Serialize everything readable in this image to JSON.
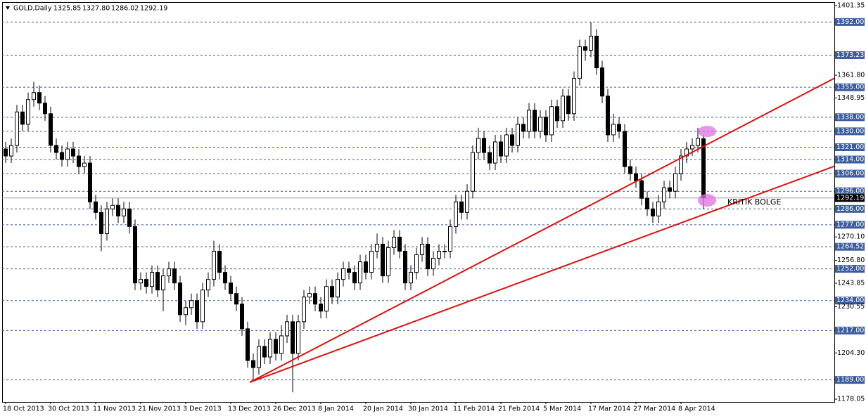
{
  "chart_data": {
    "type": "candlestick",
    "symbol": "GOLD,Daily",
    "ohlc_header": [
      "1325.85",
      "1327.80",
      "1286.02",
      "1292.19"
    ],
    "categories": [
      "18 Oct 2013",
      null,
      null,
      null,
      null,
      null,
      null,
      null,
      "30 Oct 2013",
      null,
      null,
      null,
      null,
      null,
      null,
      null,
      "11 Nov 2013",
      null,
      null,
      null,
      null,
      null,
      null,
      null,
      "21 Nov 2013",
      null,
      null,
      null,
      null,
      null,
      null,
      null,
      "3 Dec 2013",
      null,
      null,
      null,
      null,
      null,
      null,
      null,
      "13 Dec 2013",
      null,
      null,
      null,
      null,
      null,
      null,
      null,
      "26 Dec 2013",
      null,
      null,
      null,
      null,
      null,
      null,
      null,
      "8 Jan 2014",
      null,
      null,
      null,
      null,
      null,
      null,
      null,
      "20 Jan 2014",
      null,
      null,
      null,
      null,
      null,
      null,
      null,
      "30 Jan 2014",
      null,
      null,
      null,
      null,
      null,
      null,
      null,
      "11 Feb 2014",
      null,
      null,
      null,
      null,
      null,
      null,
      null,
      "21 Feb 2014",
      null,
      null,
      null,
      null,
      null,
      null,
      null,
      "5 Mar 2014",
      null,
      null,
      null,
      null,
      null,
      null,
      null,
      "17 Mar 2014",
      null,
      null,
      null,
      null,
      null,
      null,
      null,
      "27 Mar 2014",
      null,
      null,
      null,
      null,
      null,
      null,
      null,
      "8 Apr 2014",
      null,
      null,
      null,
      null
    ],
    "open": [
      1320,
      1316,
      1322,
      1341,
      1334,
      1348,
      1352,
      1346,
      1340,
      1322,
      1318,
      1314,
      1320,
      1316,
      1310,
      1312,
      1290,
      1284,
      1272,
      1286,
      1288,
      1282,
      1286,
      1276,
      1244,
      1246,
      1242,
      1250,
      1240,
      1248,
      1252,
      1244,
      1226,
      1230,
      1234,
      1222,
      1240,
      1246,
      1262,
      1250,
      1244,
      1238,
      1232,
      1218,
      1200,
      1196,
      1208,
      1202,
      1212,
      1204,
      1214,
      1222,
      1204,
      1222,
      1236,
      1238,
      1232,
      1228,
      1242,
      1236,
      1246,
      1252,
      1250,
      1244,
      1256,
      1250,
      1262,
      1266,
      1248,
      1264,
      1270,
      1262,
      1244,
      1250,
      1260,
      1266,
      1252,
      1258,
      1262,
      1262,
      1276,
      1290,
      1284,
      1296,
      1318,
      1326,
      1318,
      1312,
      1324,
      1316,
      1328,
      1322,
      1334,
      1330,
      1342,
      1330,
      1338,
      1328,
      1344,
      1336,
      1350,
      1340,
      1360,
      1378,
      1376,
      1384,
      1366,
      1350,
      1328,
      1334,
      1330,
      1310,
      1306,
      1302,
      1292,
      1286,
      1282,
      1290,
      1298,
      1296,
      1306,
      1316,
      1320,
      1322,
      1325.85
    ],
    "high": [
      1324,
      1326,
      1345,
      1345,
      1352,
      1358,
      1356,
      1350,
      1344,
      1326,
      1322,
      1324,
      1324,
      1320,
      1316,
      1316,
      1294,
      1288,
      1290,
      1292,
      1292,
      1290,
      1290,
      1280,
      1250,
      1250,
      1254,
      1254,
      1252,
      1256,
      1256,
      1248,
      1234,
      1238,
      1238,
      1244,
      1250,
      1268,
      1266,
      1254,
      1248,
      1242,
      1236,
      1222,
      1204,
      1212,
      1212,
      1216,
      1216,
      1220,
      1226,
      1226,
      1226,
      1240,
      1242,
      1242,
      1236,
      1246,
      1246,
      1250,
      1256,
      1256,
      1254,
      1260,
      1260,
      1266,
      1272,
      1270,
      1268,
      1274,
      1274,
      1266,
      1254,
      1264,
      1270,
      1270,
      1262,
      1266,
      1266,
      1280,
      1294,
      1294,
      1300,
      1322,
      1332,
      1330,
      1322,
      1328,
      1328,
      1332,
      1332,
      1338,
      1338,
      1346,
      1346,
      1342,
      1342,
      1348,
      1348,
      1354,
      1354,
      1364,
      1382,
      1382,
      1392,
      1388,
      1370,
      1354,
      1340,
      1338,
      1334,
      1314,
      1310,
      1306,
      1296,
      1290,
      1294,
      1302,
      1302,
      1310,
      1320,
      1324,
      1326,
      1332,
      1327.8
    ],
    "low": [
      1312,
      1312,
      1318,
      1330,
      1330,
      1344,
      1342,
      1336,
      1318,
      1314,
      1310,
      1310,
      1312,
      1306,
      1306,
      1286,
      1280,
      1262,
      1268,
      1282,
      1278,
      1278,
      1272,
      1240,
      1240,
      1238,
      1238,
      1236,
      1228,
      1244,
      1240,
      1222,
      1220,
      1226,
      1218,
      1218,
      1236,
      1242,
      1246,
      1240,
      1234,
      1228,
      1214,
      1196,
      1189,
      1192,
      1198,
      1198,
      1200,
      1200,
      1210,
      1182,
      1200,
      1218,
      1232,
      1228,
      1224,
      1224,
      1232,
      1232,
      1242,
      1246,
      1240,
      1240,
      1246,
      1246,
      1258,
      1244,
      1244,
      1260,
      1258,
      1240,
      1240,
      1246,
      1256,
      1248,
      1248,
      1254,
      1258,
      1258,
      1272,
      1280,
      1280,
      1292,
      1314,
      1314,
      1308,
      1308,
      1312,
      1312,
      1318,
      1318,
      1326,
      1326,
      1326,
      1326,
      1324,
      1324,
      1332,
      1332,
      1336,
      1336,
      1356,
      1370,
      1372,
      1362,
      1346,
      1324,
      1324,
      1326,
      1306,
      1302,
      1298,
      1288,
      1282,
      1278,
      1278,
      1286,
      1292,
      1292,
      1302,
      1312,
      1316,
      1318,
      1286.02
    ],
    "close": [
      1316,
      1322,
      1341,
      1334,
      1348,
      1352,
      1346,
      1340,
      1322,
      1318,
      1314,
      1320,
      1316,
      1310,
      1312,
      1290,
      1284,
      1272,
      1286,
      1288,
      1282,
      1286,
      1276,
      1244,
      1246,
      1242,
      1250,
      1240,
      1248,
      1252,
      1244,
      1226,
      1230,
      1234,
      1222,
      1240,
      1246,
      1262,
      1250,
      1244,
      1238,
      1232,
      1218,
      1200,
      1196,
      1208,
      1202,
      1212,
      1204,
      1214,
      1222,
      1204,
      1222,
      1236,
      1238,
      1232,
      1228,
      1242,
      1236,
      1246,
      1252,
      1250,
      1244,
      1256,
      1250,
      1262,
      1266,
      1248,
      1264,
      1270,
      1262,
      1244,
      1250,
      1260,
      1266,
      1252,
      1258,
      1262,
      1262,
      1276,
      1290,
      1284,
      1296,
      1318,
      1326,
      1318,
      1312,
      1324,
      1316,
      1328,
      1322,
      1334,
      1330,
      1342,
      1330,
      1338,
      1328,
      1344,
      1336,
      1350,
      1340,
      1360,
      1378,
      1376,
      1384,
      1366,
      1350,
      1328,
      1334,
      1330,
      1310,
      1306,
      1302,
      1292,
      1286,
      1282,
      1290,
      1298,
      1296,
      1306,
      1316,
      1320,
      1322,
      1326,
      1292.19
    ],
    "up_color": "#ffffff",
    "down_color": "#000000",
    "ylim": [
      1176.5,
      1403.3
    ],
    "yticks": [
      1401.35,
      {
        "value": 1361.8,
        "label": "1361.80"
      },
      1348.95,
      {
        "value": 1270.1,
        "label": "1270.10"
      },
      {
        "value": 1256.8,
        "label": "1256.80"
      },
      1243.85,
      1230.55,
      {
        "value": 1204.3,
        "label": "1204.30"
      },
      1178.05
    ],
    "levels": [
      {
        "value": 1392,
        "label": "1392.00"
      },
      {
        "value": 1373.23,
        "label": "1373.23"
      },
      {
        "value": 1355,
        "label": "1355.00"
      },
      {
        "value": 1338,
        "label": "1338.00"
      },
      {
        "value": 1330,
        "label": "1330.00"
      },
      {
        "value": 1321,
        "label": "1321.00"
      },
      {
        "value": 1314,
        "label": "1314.00"
      },
      {
        "value": 1306,
        "label": "1306.00"
      },
      {
        "value": 1296,
        "label": "1296.00"
      },
      {
        "value": 1286,
        "label": "1286.00"
      },
      {
        "value": 1277,
        "label": "1277.00"
      },
      {
        "value": 1264.52,
        "label": "1264.52"
      },
      {
        "value": 1252,
        "label": "1252.00"
      },
      {
        "value": 1234,
        "label": "1234.00"
      },
      {
        "value": 1217,
        "label": "1217.00"
      },
      {
        "value": 1189,
        "label": "1189.00"
      }
    ],
    "level_color": "#3b5c9e",
    "bid": 1292.19,
    "annotation": "KRITIK BOLGE"
  }
}
